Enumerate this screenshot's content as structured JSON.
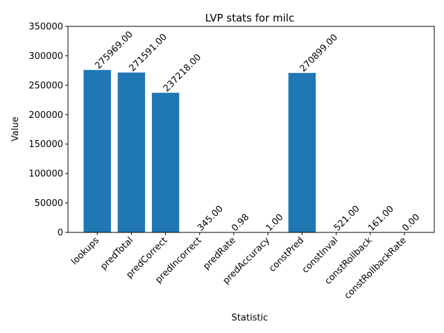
{
  "chart_data": {
    "type": "bar",
    "title": "LVP stats for milc",
    "xlabel": "Statistic",
    "ylabel": "Value",
    "ylim": [
      0,
      350000
    ],
    "yticks": [
      0,
      50000,
      100000,
      150000,
      200000,
      250000,
      300000,
      350000
    ],
    "categories": [
      "lookups",
      "predTotal",
      "predCorrect",
      "predIncorrect",
      "predRate",
      "predAccuracy",
      "constPred",
      "constInval",
      "constRollback",
      "constRollbackRate"
    ],
    "values": [
      275969,
      271591,
      237218,
      345,
      0.98,
      1,
      270899,
      521,
      161,
      0
    ],
    "value_labels": [
      "275969.00",
      "271591.00",
      "237218.00",
      "345.00",
      "0.98",
      "1.00",
      "270899.00",
      "521.00",
      "161.00",
      "0.00"
    ],
    "bar_color": "#1f77b4",
    "grid": false,
    "legend": "none"
  }
}
